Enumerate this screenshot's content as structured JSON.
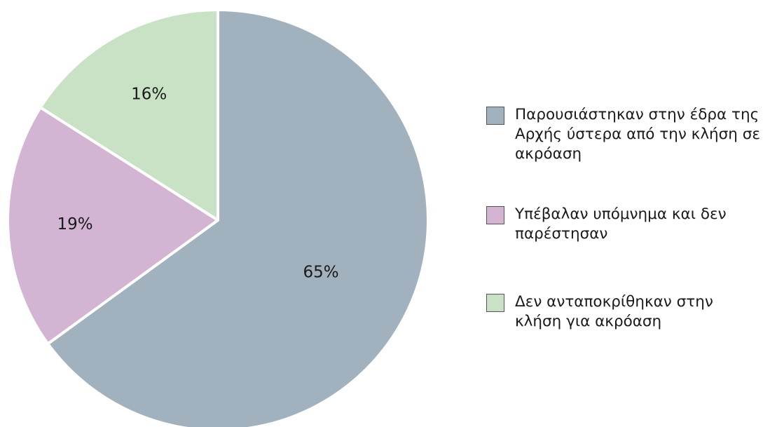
{
  "chart_data": {
    "type": "pie",
    "categories": [
      "Παρουσιάστηκαν στην έδρα της Αρχής ύστερα από την κλήση σε ακρόαση",
      "Υπέβαλαν υπόμνημα και δεν παρέστησαν",
      "Δεν ανταποκρίθηκαν στην κλήση για ακρόαση"
    ],
    "values": [
      65,
      19,
      16
    ],
    "value_labels": [
      "65%",
      "19%",
      "16%"
    ],
    "colors": [
      "#a1b1bd",
      "#d3b5d3",
      "#c9e2c5"
    ]
  }
}
